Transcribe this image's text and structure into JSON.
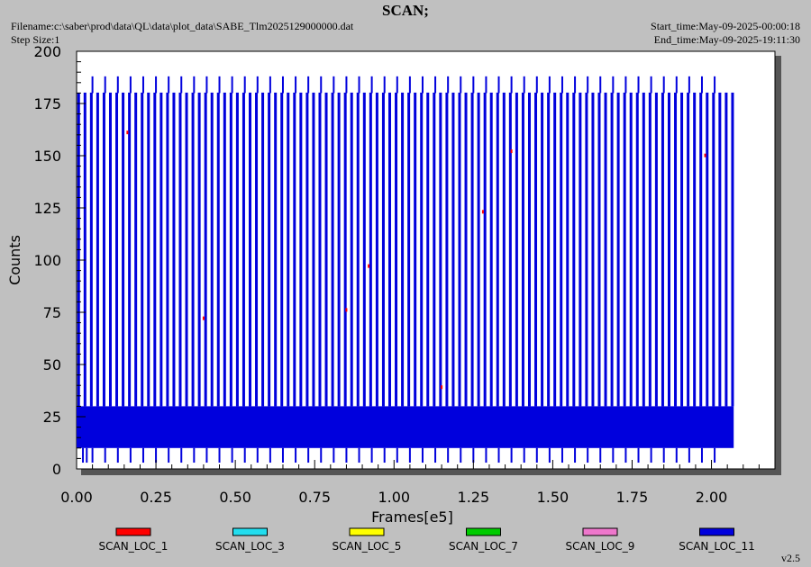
{
  "header": {
    "title": "SCAN;",
    "filename": "Filename:c:\\saber\\prod\\data\\QL\\data\\plot_data\\SABE_Tlm2025129000000.dat",
    "step_size": "Step Size:1",
    "start_time": "Start_time:May-09-2025-00:00:18",
    "end_time": "End_time:May-09-2025-19:11:30"
  },
  "version": "v2.5",
  "colors": {
    "background": "#c0c0c0",
    "plot_background": "#ffffff",
    "shadow": "#555555"
  },
  "chart_data": {
    "type": "line",
    "xlabel": "Frames[e5]",
    "ylabel": "Counts",
    "xlim": [
      0,
      2.2
    ],
    "ylim": [
      0,
      200
    ],
    "x_ticks": [
      "0.00",
      "0.25",
      "0.50",
      "0.75",
      "1.00",
      "1.25",
      "1.50",
      "1.75",
      "2.00"
    ],
    "y_ticks": [
      "0",
      "25",
      "50",
      "75",
      "100",
      "125",
      "150",
      "175",
      "200"
    ],
    "legend": [
      {
        "name": "SCAN_LOC_1",
        "color": "#ff0000"
      },
      {
        "name": "SCAN_LOC_3",
        "color": "#22ddee"
      },
      {
        "name": "SCAN_LOC_5",
        "color": "#ffff00"
      },
      {
        "name": "SCAN_LOC_7",
        "color": "#00cc00"
      },
      {
        "name": "SCAN_LOC_9",
        "color": "#ee77cc"
      },
      {
        "name": "SCAN_LOC_11",
        "color": "#0000dd"
      }
    ],
    "series": [
      {
        "name": "SCAN_LOC_11",
        "color": "#0000dd",
        "x_start": 0.0,
        "x_end": 2.07,
        "scan_period": 0.02,
        "scan_peak_counts": 180,
        "periodic_spike_counts": 188,
        "periodic_spike_period": 0.04,
        "baseline_band": [
          10,
          30
        ],
        "baseline_dips": 2
      }
    ],
    "minor_spikes": [
      {
        "x": 0.16,
        "y": 162
      },
      {
        "x": 0.4,
        "y": 73
      },
      {
        "x": 0.85,
        "y": 77
      },
      {
        "x": 0.92,
        "y": 98
      },
      {
        "x": 1.15,
        "y": 40
      },
      {
        "x": 1.28,
        "y": 124
      },
      {
        "x": 1.37,
        "y": 153
      },
      {
        "x": 1.98,
        "y": 151
      }
    ]
  }
}
